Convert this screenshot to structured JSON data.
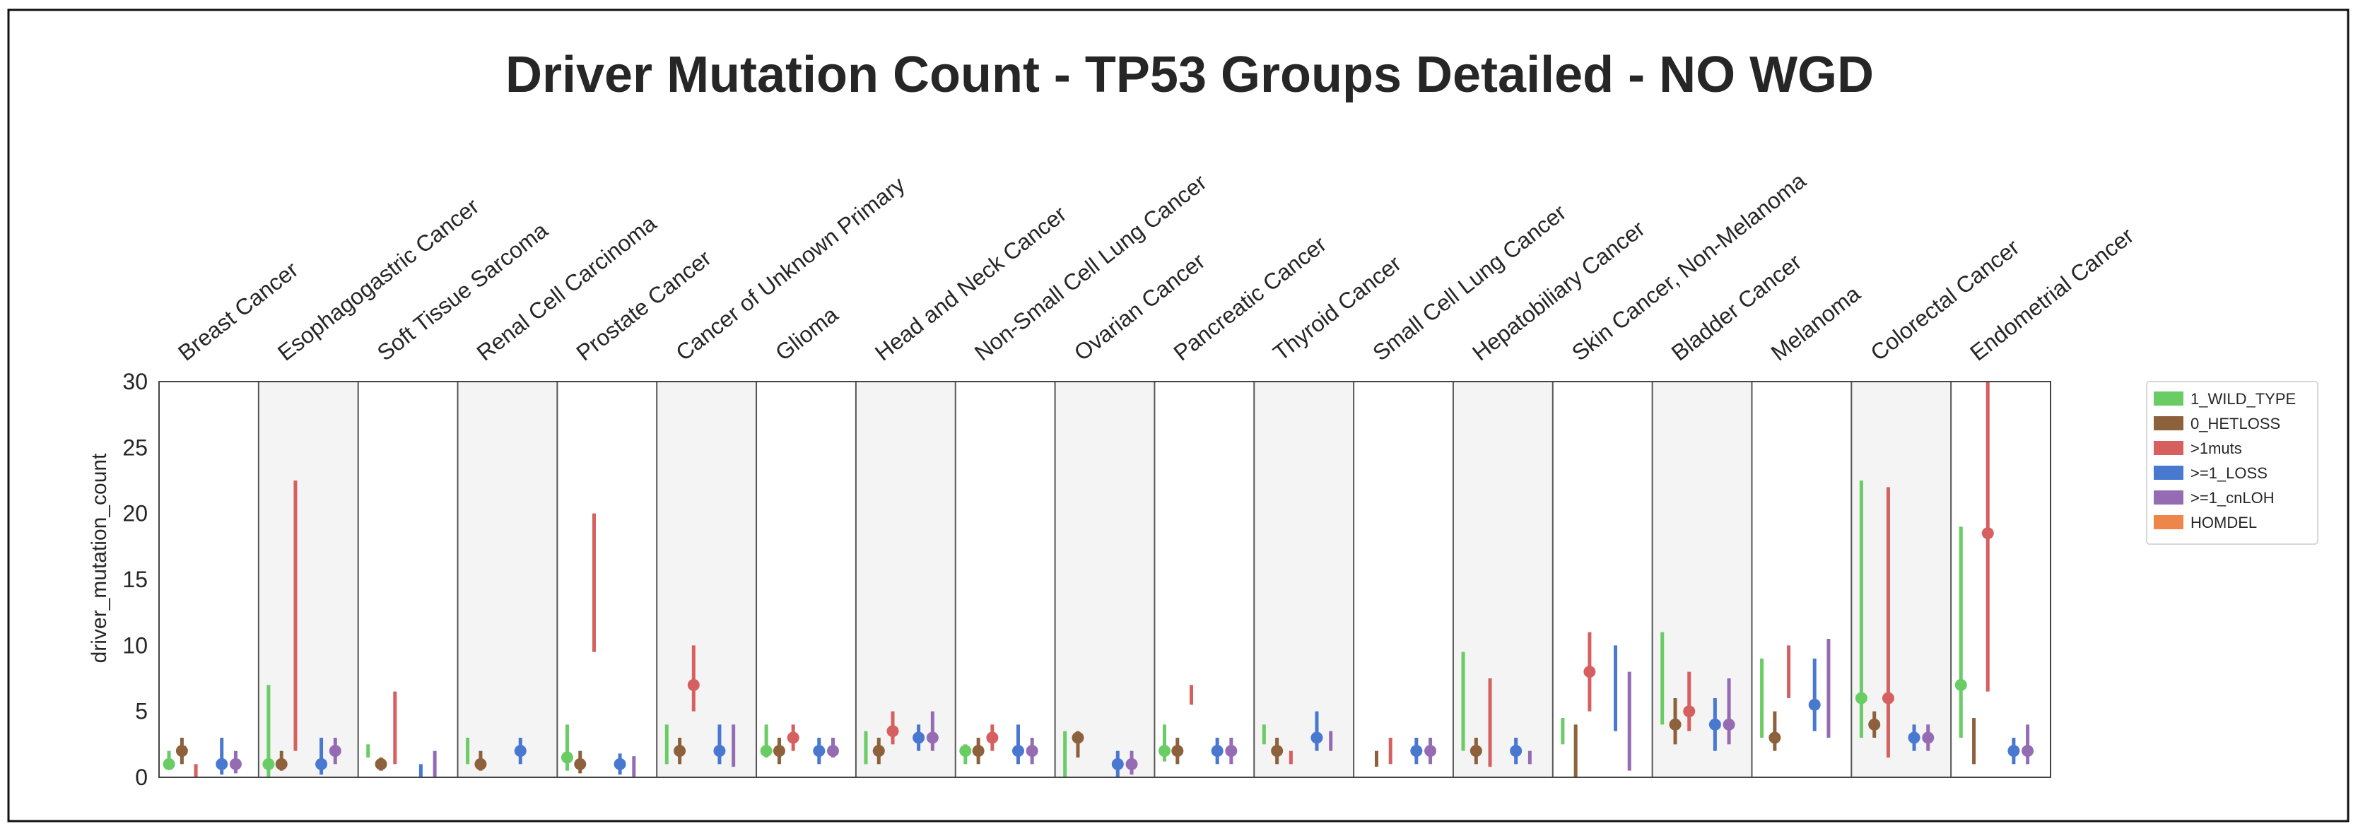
{
  "chart_data": {
    "type": "scatter",
    "title": "Driver Mutation Count - TP53 Groups Detailed - NO WGD",
    "ylabel": "driver_mutation_count",
    "xlabel": "",
    "ylim": [
      0,
      30
    ],
    "yticks": [
      0,
      5,
      10,
      15,
      20,
      25,
      30
    ],
    "grid": false,
    "legend_position": "right",
    "categories": [
      "Breast Cancer",
      "Esophagogastric Cancer",
      "Soft Tissue Sarcoma",
      "Renal Cell Carcinoma",
      "Prostate Cancer",
      "Cancer of Unknown Primary",
      "Glioma",
      "Head and Neck Cancer",
      "Non-Small Cell Lung Cancer",
      "Ovarian Cancer",
      "Pancreatic Cancer",
      "Thyroid Cancer",
      "Small Cell Lung Cancer",
      "Hepatobiliary Cancer",
      "Skin Cancer, Non-Melanoma",
      "Bladder Cancer",
      "Melanoma",
      "Colorectal Cancer",
      "Endometrial Cancer"
    ],
    "series": [
      {
        "name": "1_WILD_TYPE",
        "color": "#6acc64",
        "points": [
          [
            1,
            1,
            2
          ],
          [
            1,
            0,
            7
          ],
          [
            null,
            1.5,
            2.5
          ],
          [
            null,
            1,
            3
          ],
          [
            1.5,
            0.5,
            4
          ],
          [
            null,
            1,
            4
          ],
          [
            2,
            1.5,
            4
          ],
          [
            null,
            1,
            3.5
          ],
          [
            2,
            1,
            2.5
          ],
          [
            null,
            0,
            3.5
          ],
          [
            2,
            1.2,
            4
          ],
          [
            null,
            2.5,
            4
          ],
          null,
          [
            null,
            2,
            9.5
          ],
          [
            null,
            2.5,
            4.5
          ],
          [
            null,
            4,
            11
          ],
          [
            null,
            3,
            9
          ],
          [
            6,
            3,
            22.5
          ],
          [
            7,
            3,
            19
          ]
        ]
      },
      {
        "name": "0_HETLOSS",
        "color": "#8c613c",
        "points": [
          [
            2,
            1,
            3
          ],
          [
            1,
            0.5,
            2
          ],
          [
            1,
            0.5,
            1.5
          ],
          [
            1,
            0.5,
            2
          ],
          [
            1,
            0.3,
            2
          ],
          [
            2,
            1,
            3
          ],
          [
            2,
            1,
            3
          ],
          [
            2,
            1,
            3
          ],
          [
            2,
            1,
            3
          ],
          [
            3,
            1.5,
            3.5
          ],
          [
            2,
            1,
            3
          ],
          [
            2,
            1,
            3
          ],
          [
            null,
            0.8,
            2
          ],
          [
            2,
            1,
            3
          ],
          [
            null,
            0,
            4
          ],
          [
            4,
            2.5,
            6
          ],
          [
            3,
            2,
            5
          ],
          [
            4,
            3,
            5
          ],
          [
            null,
            1,
            4.5
          ]
        ]
      },
      {
        "name": ">1muts",
        "color": "#d65f5f",
        "points": [
          [
            null,
            0,
            1
          ],
          [
            null,
            2,
            22.5
          ],
          [
            null,
            1,
            6.5
          ],
          null,
          [
            null,
            9.5,
            20
          ],
          [
            7,
            5,
            10
          ],
          [
            3,
            2,
            4
          ],
          [
            3.5,
            2.5,
            5
          ],
          [
            3,
            2,
            4
          ],
          null,
          [
            null,
            5.5,
            7
          ],
          [
            null,
            1,
            2
          ],
          [
            null,
            1,
            3
          ],
          [
            null,
            0.8,
            7.5
          ],
          [
            8,
            5,
            11
          ],
          [
            5,
            3.5,
            8
          ],
          [
            null,
            6,
            10
          ],
          [
            6,
            1.5,
            22
          ],
          [
            18.5,
            6.5,
            30
          ]
        ]
      },
      {
        "name": ">=1_LOSS",
        "color": "#4878d0",
        "points": [
          [
            1,
            0.2,
            3
          ],
          [
            1,
            0.2,
            3
          ],
          [
            null,
            0,
            1
          ],
          [
            2,
            1,
            3
          ],
          [
            1,
            0.2,
            1.8
          ],
          [
            2,
            1,
            4
          ],
          [
            2,
            1,
            3
          ],
          [
            3,
            2,
            4
          ],
          [
            2,
            1,
            4
          ],
          [
            1,
            0,
            2
          ],
          [
            2,
            1,
            3
          ],
          [
            3,
            2,
            5
          ],
          [
            2,
            1,
            3
          ],
          [
            2,
            1,
            3
          ],
          [
            null,
            3.5,
            10
          ],
          [
            4,
            2,
            6
          ],
          [
            5.5,
            3.5,
            9
          ],
          [
            3,
            2,
            4
          ],
          [
            2,
            1,
            3
          ]
        ]
      },
      {
        "name": ">=1_cnLOH",
        "color": "#956cb4",
        "points": [
          [
            1,
            0.3,
            2
          ],
          [
            2,
            1,
            3
          ],
          [
            null,
            0,
            2
          ],
          null,
          [
            null,
            0,
            1.6
          ],
          [
            null,
            0.8,
            4
          ],
          [
            2,
            1.5,
            3
          ],
          [
            3,
            2,
            5
          ],
          [
            2,
            1,
            3
          ],
          [
            1,
            0.2,
            2
          ],
          [
            2,
            1,
            3
          ],
          [
            null,
            2,
            3.5
          ],
          [
            2,
            1,
            3
          ],
          [
            null,
            1,
            2
          ],
          [
            null,
            0.5,
            8
          ],
          [
            4,
            2.5,
            7.5
          ],
          [
            null,
            3,
            10.5
          ],
          [
            3,
            2,
            4
          ],
          [
            2,
            1,
            4
          ]
        ]
      },
      {
        "name": "HOMDEL",
        "color": "#ee854a",
        "points": []
      }
    ]
  }
}
